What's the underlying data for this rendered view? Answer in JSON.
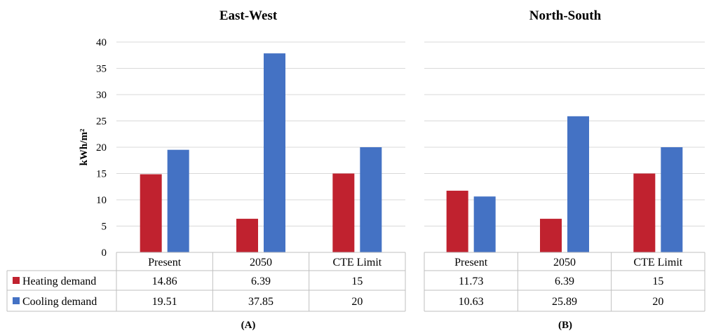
{
  "chart_data": [
    {
      "type": "bar",
      "title": "East-West",
      "panel_label": "(A)",
      "ylabel": "kWh/m²",
      "ylim": [
        0,
        40
      ],
      "yticks": [
        0,
        5,
        10,
        15,
        20,
        25,
        30,
        35,
        40
      ],
      "categories": [
        "Present",
        "2050",
        "CTE Limit"
      ],
      "series": [
        {
          "name": "Heating demand",
          "values": [
            14.86,
            6.39,
            15
          ],
          "labels": [
            "14.86",
            "6.39",
            "15"
          ],
          "color": "#c0222f"
        },
        {
          "name": "Cooling demand",
          "values": [
            19.51,
            37.85,
            20
          ],
          "labels": [
            "19.51",
            "37.85",
            "20"
          ],
          "color": "#4472c4"
        }
      ],
      "grid": true,
      "data_table": true
    },
    {
      "type": "bar",
      "title": "North-South",
      "panel_label": "(B)",
      "ylim": [
        0,
        40
      ],
      "categories": [
        "Present",
        "2050",
        "CTE Limit"
      ],
      "series": [
        {
          "name": "Heating demand",
          "values": [
            11.73,
            6.39,
            15
          ],
          "labels": [
            "11.73",
            "6.39",
            "15"
          ],
          "color": "#c0222f"
        },
        {
          "name": "Cooling demand",
          "values": [
            10.63,
            25.89,
            20
          ],
          "labels": [
            "10.63",
            "25.89",
            "20"
          ],
          "color": "#4472c4"
        }
      ],
      "grid": true,
      "data_table": true
    }
  ]
}
